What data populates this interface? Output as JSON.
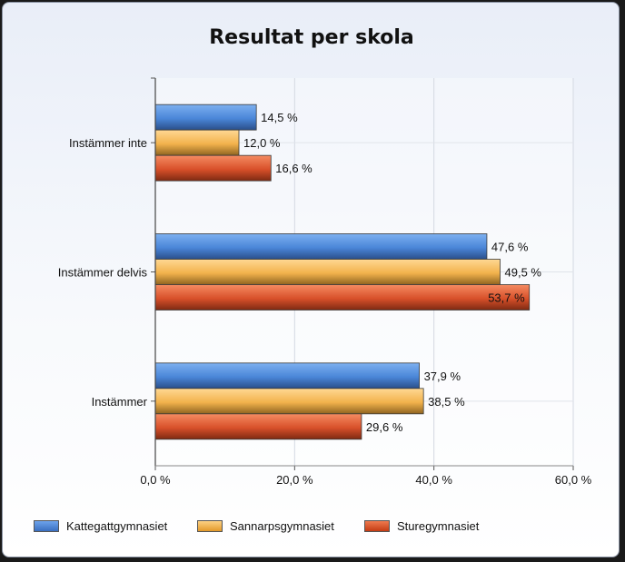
{
  "chart_data": {
    "type": "bar",
    "orientation": "horizontal",
    "title": "Resultat per skola",
    "categories": [
      "Instämmer inte",
      "Instämmer delvis",
      "Instämmer"
    ],
    "series": [
      {
        "name": "Kattegattgymnasiet",
        "values": [
          14.5,
          47.6,
          37.9
        ],
        "color": "#4a86d8"
      },
      {
        "name": "Sannarpsgymnasiet",
        "values": [
          12.0,
          49.5,
          38.5
        ],
        "color": "#f2b24c"
      },
      {
        "name": "Sturegymnasiet",
        "values": [
          16.6,
          53.7,
          29.6
        ],
        "color": "#d8502a"
      }
    ],
    "data_labels": [
      [
        "14,5 %",
        "47,6 %",
        "37,9 %"
      ],
      [
        "12,0 %",
        "49,5 %",
        "38,5 %"
      ],
      [
        "16,6 %",
        "53,7 %",
        "29,6 %"
      ]
    ],
    "xlim": [
      0,
      60
    ],
    "xticks": [
      0,
      20,
      40,
      60
    ],
    "xtick_labels": [
      "0,0 %",
      "20,0 %",
      "40,0 %",
      "60,0 %"
    ],
    "grid": true,
    "legend_position": "bottom"
  }
}
